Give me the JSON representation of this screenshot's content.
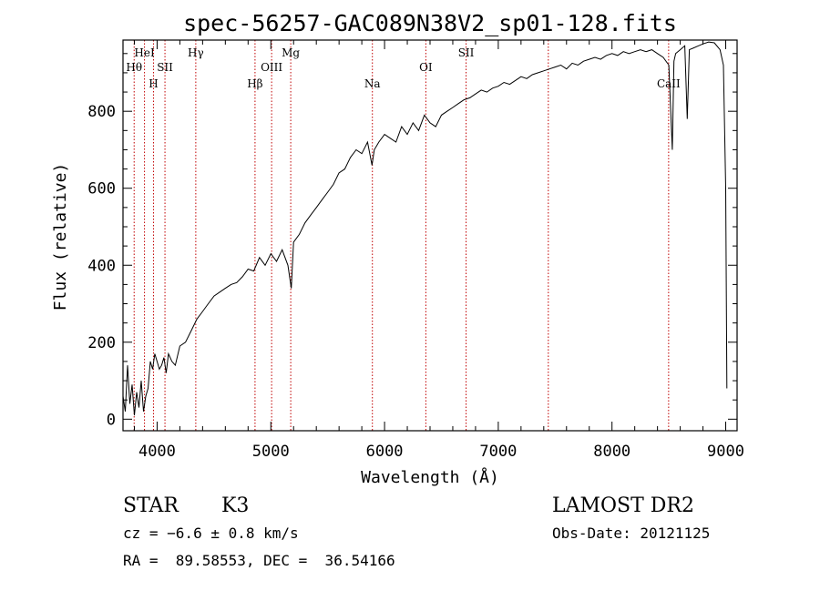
{
  "colors": {
    "axis": "#000000",
    "spectrum": "#000000",
    "line_marker": "#c00000",
    "background": "#ffffff"
  },
  "chart_data": {
    "type": "line",
    "title": "spec-56257-GAC089N38V2_sp01-128.fits",
    "xlabel": "Wavelength (Å)",
    "ylabel": "Flux (relative)",
    "xlim": [
      3700,
      9100
    ],
    "ylim": [
      -30,
      985
    ],
    "xticks": [
      4000,
      5000,
      6000,
      7000,
      8000,
      9000
    ],
    "xtick_labels": [
      "4000",
      "5000",
      "6000",
      "7000",
      "8000",
      "9000"
    ],
    "yticks": [
      0,
      200,
      400,
      600,
      800
    ],
    "ytick_labels": [
      "0",
      "200",
      "400",
      "600",
      "800"
    ],
    "grid": false,
    "series": [
      {
        "name": "spectrum",
        "x": [
          3700,
          3720,
          3740,
          3760,
          3780,
          3800,
          3820,
          3840,
          3860,
          3880,
          3900,
          3920,
          3940,
          3960,
          3980,
          4000,
          4020,
          4040,
          4060,
          4080,
          4100,
          4130,
          4160,
          4200,
          4250,
          4300,
          4350,
          4400,
          4450,
          4500,
          4550,
          4600,
          4650,
          4700,
          4750,
          4800,
          4850,
          4900,
          4950,
          5000,
          5050,
          5100,
          5150,
          5180,
          5200,
          5250,
          5300,
          5350,
          5400,
          5450,
          5500,
          5550,
          5600,
          5650,
          5700,
          5750,
          5800,
          5850,
          5890,
          5910,
          5950,
          6000,
          6050,
          6100,
          6150,
          6200,
          6250,
          6300,
          6350,
          6400,
          6450,
          6500,
          6550,
          6600,
          6650,
          6700,
          6750,
          6800,
          6850,
          6900,
          6950,
          7000,
          7050,
          7100,
          7150,
          7200,
          7250,
          7300,
          7350,
          7400,
          7450,
          7500,
          7550,
          7600,
          7650,
          7700,
          7750,
          7800,
          7850,
          7900,
          7950,
          8000,
          8050,
          8100,
          8150,
          8200,
          8250,
          8300,
          8350,
          8400,
          8450,
          8500,
          8530,
          8545,
          8560,
          8600,
          8640,
          8662,
          8680,
          8720,
          8760,
          8800,
          8850,
          8900,
          8950,
          8980,
          9000,
          9010
        ],
        "values": [
          60,
          20,
          140,
          40,
          90,
          10,
          70,
          30,
          100,
          20,
          60,
          80,
          150,
          130,
          170,
          150,
          130,
          140,
          160,
          120,
          170,
          150,
          140,
          190,
          200,
          230,
          260,
          280,
          300,
          320,
          330,
          340,
          350,
          355,
          370,
          390,
          385,
          420,
          400,
          430,
          410,
          440,
          400,
          340,
          460,
          480,
          510,
          530,
          550,
          570,
          590,
          610,
          640,
          650,
          680,
          700,
          690,
          720,
          660,
          700,
          720,
          740,
          730,
          720,
          760,
          740,
          770,
          750,
          790,
          770,
          760,
          790,
          800,
          810,
          820,
          830,
          835,
          845,
          855,
          850,
          860,
          865,
          875,
          870,
          880,
          890,
          885,
          895,
          900,
          905,
          910,
          915,
          920,
          910,
          925,
          920,
          930,
          935,
          940,
          935,
          945,
          950,
          945,
          955,
          950,
          955,
          960,
          955,
          960,
          950,
          940,
          920,
          700,
          930,
          950,
          960,
          970,
          780,
          960,
          965,
          970,
          975,
          980,
          978,
          960,
          920,
          600,
          80
        ]
      }
    ],
    "spectral_lines": [
      {
        "label": "Hθ",
        "wavelength": 3798,
        "row": 3
      },
      {
        "label": "HeI",
        "wavelength": 3889,
        "row": 1
      },
      {
        "label": "H",
        "wavelength": 3968,
        "row": 4
      },
      {
        "label": "SII",
        "wavelength": 4069,
        "row": 3
      },
      {
        "label": "Hγ",
        "wavelength": 4340,
        "row": 1
      },
      {
        "label": "Hβ",
        "wavelength": 4861,
        "row": 4
      },
      {
        "label": "OIII",
        "wavelength": 5007,
        "row": 3
      },
      {
        "label": "Mg",
        "wavelength": 5175,
        "row": 1
      },
      {
        "label": "Na",
        "wavelength": 5893,
        "row": 4
      },
      {
        "label": "OI",
        "wavelength": 6363,
        "row": 3
      },
      {
        "label": "SII",
        "wavelength": 6717,
        "row": 1
      },
      {
        "label": "",
        "wavelength": 7440,
        "row": 4
      },
      {
        "label": "CaII",
        "wavelength": 8498,
        "row": 4
      }
    ]
  },
  "footer": {
    "object_class": "STAR",
    "subclass": "K3",
    "survey": "LAMOST DR2",
    "velocity": "cz = −6.6 ± 0.8 km/s",
    "obs_date": "Obs-Date: 20121125",
    "coords": "RA =  89.58553, DEC =  36.54166"
  }
}
